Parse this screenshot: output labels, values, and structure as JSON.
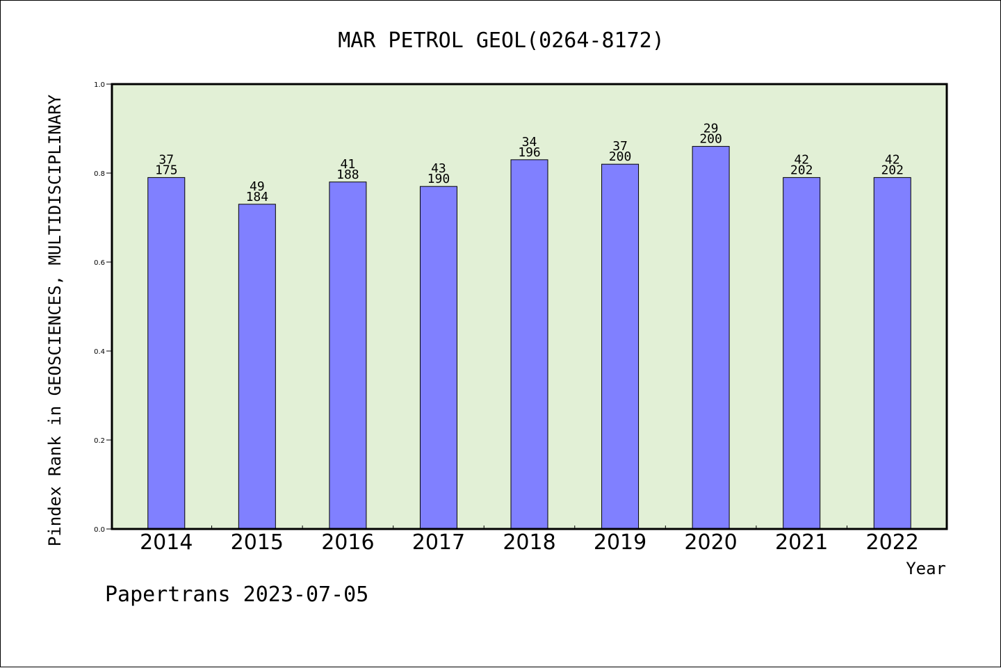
{
  "chart_data": {
    "type": "bar",
    "title": "MAR PETROL GEOL(0264-8172)",
    "xlabel": "Year",
    "ylabel": "Pindex Rank in GEOSCIENCES, MULTIDISCIPLINARY",
    "ylim": [
      0.0,
      1.0
    ],
    "yticks": [
      "0.0",
      "0.2",
      "0.4",
      "0.6",
      "0.8",
      "1.0"
    ],
    "categories": [
      "2014",
      "2015",
      "2016",
      "2017",
      "2018",
      "2019",
      "2020",
      "2021",
      "2022"
    ],
    "values": [
      0.79,
      0.73,
      0.78,
      0.77,
      0.83,
      0.82,
      0.86,
      0.79,
      0.79
    ],
    "rank_labels": [
      "37",
      "49",
      "41",
      "43",
      "34",
      "37",
      "29",
      "42",
      "42"
    ],
    "total_labels": [
      "175",
      "184",
      "188",
      "190",
      "196",
      "200",
      "200",
      "202",
      "202"
    ],
    "grid": false,
    "colors": {
      "bar": "#8080ff",
      "plot_bg": "#e2f0d6",
      "axis": "#000000"
    }
  },
  "footer": {
    "credit": "Papertrans 2023-07-05"
  }
}
